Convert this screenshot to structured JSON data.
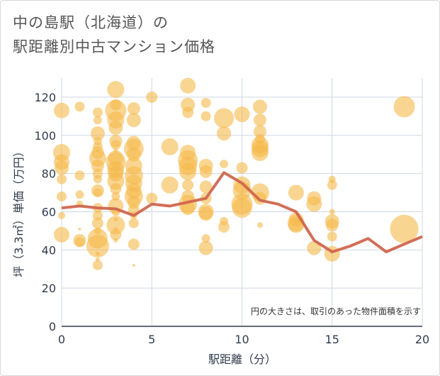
{
  "title_line1": "中の島駅（北海道）の",
  "title_line2": "駅距離別中古マンション価格",
  "note": "円の大きさは、取引のあった物件面積を示す",
  "colors": {
    "bubble": "#f5b94a",
    "line": "#d0664e",
    "grid": "#cfd8e3",
    "axis": "#2f3b4c"
  },
  "chart_data": {
    "type": "scatter",
    "xlabel": "駅距離（分）",
    "ylabel": "坪（3.3㎡）単価（万円）",
    "xlim": [
      0,
      20
    ],
    "ylim": [
      0,
      130
    ],
    "x_ticks": [
      0,
      5,
      10,
      15,
      20
    ],
    "y_ticks": [
      0,
      20,
      40,
      60,
      80,
      100,
      120
    ],
    "grid": true,
    "bubbles": [
      {
        "x": 0,
        "y": 113,
        "s": 11
      },
      {
        "x": 0,
        "y": 91,
        "s": 12
      },
      {
        "x": 0,
        "y": 86,
        "s": 11
      },
      {
        "x": 0,
        "y": 83,
        "s": 10
      },
      {
        "x": 0,
        "y": 77,
        "s": 7
      },
      {
        "x": 0,
        "y": 68,
        "s": 7
      },
      {
        "x": 0,
        "y": 58,
        "s": 5
      },
      {
        "x": 0,
        "y": 48,
        "s": 11
      },
      {
        "x": 1,
        "y": 115,
        "s": 7
      },
      {
        "x": 1,
        "y": 79,
        "s": 7
      },
      {
        "x": 1,
        "y": 69,
        "s": 6
      },
      {
        "x": 1,
        "y": 64,
        "s": 5
      },
      {
        "x": 1,
        "y": 51,
        "s": 2
      },
      {
        "x": 1,
        "y": 45,
        "s": 9
      },
      {
        "x": 1,
        "y": 44,
        "s": 7
      },
      {
        "x": 2,
        "y": 112,
        "s": 7
      },
      {
        "x": 2,
        "y": 108,
        "s": 6
      },
      {
        "x": 2,
        "y": 101,
        "s": 10
      },
      {
        "x": 2,
        "y": 97,
        "s": 6
      },
      {
        "x": 2,
        "y": 94,
        "s": 7
      },
      {
        "x": 2,
        "y": 91,
        "s": 9
      },
      {
        "x": 2,
        "y": 88,
        "s": 12
      },
      {
        "x": 2,
        "y": 84,
        "s": 9
      },
      {
        "x": 2,
        "y": 80,
        "s": 7
      },
      {
        "x": 2,
        "y": 77,
        "s": 6
      },
      {
        "x": 2,
        "y": 71,
        "s": 9
      },
      {
        "x": 2,
        "y": 70,
        "s": 6
      },
      {
        "x": 2,
        "y": 62,
        "s": 7
      },
      {
        "x": 2,
        "y": 58,
        "s": 7
      },
      {
        "x": 2,
        "y": 54,
        "s": 8
      },
      {
        "x": 2,
        "y": 50,
        "s": 5
      },
      {
        "x": 2,
        "y": 46,
        "s": 14
      },
      {
        "x": 2,
        "y": 42,
        "s": 16
      },
      {
        "x": 2,
        "y": 38,
        "s": 3
      },
      {
        "x": 2,
        "y": 35,
        "s": 3
      },
      {
        "x": 2,
        "y": 32,
        "s": 7
      },
      {
        "x": 3,
        "y": 124,
        "s": 12
      },
      {
        "x": 3,
        "y": 116,
        "s": 8
      },
      {
        "x": 3,
        "y": 113,
        "s": 15
      },
      {
        "x": 3,
        "y": 108,
        "s": 12
      },
      {
        "x": 3,
        "y": 104,
        "s": 10
      },
      {
        "x": 3,
        "y": 97,
        "s": 9
      },
      {
        "x": 3,
        "y": 95,
        "s": 7
      },
      {
        "x": 3,
        "y": 92,
        "s": 3
      },
      {
        "x": 3,
        "y": 88,
        "s": 11
      },
      {
        "x": 3,
        "y": 86,
        "s": 14
      },
      {
        "x": 3,
        "y": 82,
        "s": 12
      },
      {
        "x": 3,
        "y": 80,
        "s": 11
      },
      {
        "x": 3,
        "y": 76,
        "s": 12
      },
      {
        "x": 3,
        "y": 72,
        "s": 8
      },
      {
        "x": 3,
        "y": 68,
        "s": 6
      },
      {
        "x": 3,
        "y": 63,
        "s": 11
      },
      {
        "x": 3,
        "y": 60,
        "s": 6
      },
      {
        "x": 3,
        "y": 56,
        "s": 3
      },
      {
        "x": 3,
        "y": 53,
        "s": 13
      },
      {
        "x": 3,
        "y": 51,
        "s": 3
      },
      {
        "x": 3,
        "y": 48,
        "s": 8
      },
      {
        "x": 3,
        "y": 45,
        "s": 3
      },
      {
        "x": 4,
        "y": 114,
        "s": 9
      },
      {
        "x": 4,
        "y": 108,
        "s": 10
      },
      {
        "x": 4,
        "y": 96,
        "s": 10
      },
      {
        "x": 4,
        "y": 93,
        "s": 14
      },
      {
        "x": 4,
        "y": 90,
        "s": 10
      },
      {
        "x": 4,
        "y": 84,
        "s": 12
      },
      {
        "x": 4,
        "y": 79,
        "s": 13
      },
      {
        "x": 4,
        "y": 75,
        "s": 12
      },
      {
        "x": 4,
        "y": 71,
        "s": 11
      },
      {
        "x": 4,
        "y": 68,
        "s": 13
      },
      {
        "x": 4,
        "y": 65,
        "s": 9
      },
      {
        "x": 4,
        "y": 61,
        "s": 8
      },
      {
        "x": 4,
        "y": 58,
        "s": 5
      },
      {
        "x": 4,
        "y": 54,
        "s": 7
      },
      {
        "x": 4,
        "y": 43,
        "s": 8
      },
      {
        "x": 4,
        "y": 32,
        "s": 2
      },
      {
        "x": 5,
        "y": 120,
        "s": 8
      },
      {
        "x": 5,
        "y": 67,
        "s": 8
      },
      {
        "x": 6,
        "y": 94,
        "s": 12
      },
      {
        "x": 6,
        "y": 74,
        "s": 12
      },
      {
        "x": 7,
        "y": 126,
        "s": 11
      },
      {
        "x": 7,
        "y": 116,
        "s": 10
      },
      {
        "x": 7,
        "y": 112,
        "s": 8
      },
      {
        "x": 7,
        "y": 91,
        "s": 11
      },
      {
        "x": 7,
        "y": 87,
        "s": 14
      },
      {
        "x": 7,
        "y": 84,
        "s": 13
      },
      {
        "x": 7,
        "y": 81,
        "s": 12
      },
      {
        "x": 7,
        "y": 74,
        "s": 8
      },
      {
        "x": 7,
        "y": 68,
        "s": 9
      },
      {
        "x": 7,
        "y": 64,
        "s": 13
      },
      {
        "x": 7,
        "y": 62,
        "s": 10
      },
      {
        "x": 8,
        "y": 117,
        "s": 7
      },
      {
        "x": 8,
        "y": 110,
        "s": 7
      },
      {
        "x": 8,
        "y": 84,
        "s": 10
      },
      {
        "x": 8,
        "y": 81,
        "s": 9
      },
      {
        "x": 8,
        "y": 73,
        "s": 9
      },
      {
        "x": 8,
        "y": 67,
        "s": 8
      },
      {
        "x": 8,
        "y": 60,
        "s": 11
      },
      {
        "x": 8,
        "y": 59,
        "s": 10
      },
      {
        "x": 8,
        "y": 46,
        "s": 6
      },
      {
        "x": 8,
        "y": 41,
        "s": 10
      },
      {
        "x": 9,
        "y": 109,
        "s": 14
      },
      {
        "x": 9,
        "y": 101,
        "s": 10
      },
      {
        "x": 9,
        "y": 85,
        "s": 6
      },
      {
        "x": 9,
        "y": 55,
        "s": 6
      },
      {
        "x": 9,
        "y": 52,
        "s": 8
      },
      {
        "x": 10,
        "y": 111,
        "s": 11
      },
      {
        "x": 10,
        "y": 83,
        "s": 8
      },
      {
        "x": 10,
        "y": 74,
        "s": 12
      },
      {
        "x": 10,
        "y": 71,
        "s": 13
      },
      {
        "x": 10,
        "y": 64,
        "s": 15
      },
      {
        "x": 10,
        "y": 62,
        "s": 14
      },
      {
        "x": 11,
        "y": 115,
        "s": 10
      },
      {
        "x": 11,
        "y": 108,
        "s": 9
      },
      {
        "x": 11,
        "y": 102,
        "s": 9
      },
      {
        "x": 11,
        "y": 98,
        "s": 7
      },
      {
        "x": 11,
        "y": 95,
        "s": 12
      },
      {
        "x": 11,
        "y": 93,
        "s": 12
      },
      {
        "x": 11,
        "y": 91,
        "s": 12
      },
      {
        "x": 11,
        "y": 70,
        "s": 13
      },
      {
        "x": 11,
        "y": 67,
        "s": 9
      },
      {
        "x": 11,
        "y": 53,
        "s": 4
      },
      {
        "x": 13,
        "y": 70,
        "s": 11
      },
      {
        "x": 13,
        "y": 56,
        "s": 10
      },
      {
        "x": 13,
        "y": 54,
        "s": 12
      },
      {
        "x": 13,
        "y": 53,
        "s": 11
      },
      {
        "x": 14,
        "y": 67,
        "s": 10
      },
      {
        "x": 14,
        "y": 64,
        "s": 11
      },
      {
        "x": 14,
        "y": 41,
        "s": 10
      },
      {
        "x": 15,
        "y": 77,
        "s": 5
      },
      {
        "x": 15,
        "y": 74,
        "s": 7
      },
      {
        "x": 15,
        "y": 60,
        "s": 4
      },
      {
        "x": 15,
        "y": 55,
        "s": 10
      },
      {
        "x": 15,
        "y": 53,
        "s": 9
      },
      {
        "x": 15,
        "y": 47,
        "s": 7
      },
      {
        "x": 15,
        "y": 38,
        "s": 11
      },
      {
        "x": 19,
        "y": 115,
        "s": 15
      },
      {
        "x": 19,
        "y": 51,
        "s": 20
      }
    ],
    "trend": {
      "x": [
        0,
        1,
        2,
        3,
        4,
        5,
        6,
        7,
        8,
        9,
        10,
        11,
        12,
        13,
        14,
        15,
        16,
        17,
        18,
        19,
        20
      ],
      "y": [
        62,
        63,
        62,
        61.5,
        58,
        64,
        63,
        65,
        67,
        80.5,
        75,
        66,
        64,
        60,
        45,
        39,
        42,
        46,
        39,
        43,
        47
      ]
    }
  }
}
